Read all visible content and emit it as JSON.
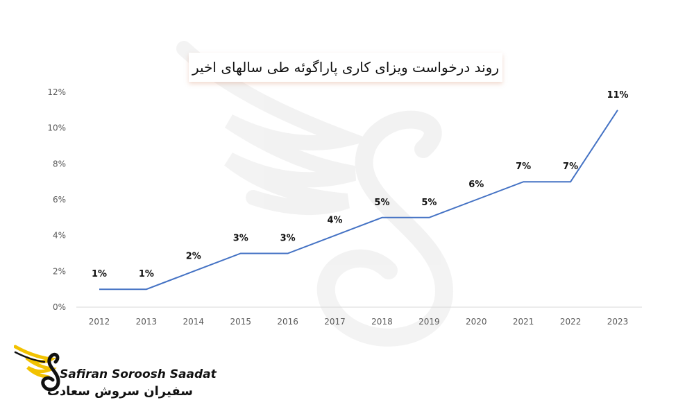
{
  "chart_data": {
    "type": "line",
    "title": "روند درخواست ویزای کاری پاراگوئه طی سالهای اخیر",
    "xlabel": "",
    "ylabel": "",
    "categories": [
      "2012",
      "2013",
      "2014",
      "2015",
      "2016",
      "2017",
      "2018",
      "2019",
      "2020",
      "2021",
      "2022",
      "2023"
    ],
    "values": [
      1,
      1,
      2,
      3,
      3,
      4,
      5,
      5,
      6,
      7,
      7,
      11
    ],
    "data_labels": [
      "1%",
      "1%",
      "2%",
      "3%",
      "3%",
      "4%",
      "5%",
      "5%",
      "6%",
      "7%",
      "7%",
      "11%"
    ],
    "yticks": [
      "0%",
      "2%",
      "4%",
      "6%",
      "8%",
      "10%",
      "12%"
    ],
    "ylim": [
      0,
      12
    ],
    "grid": false,
    "line_color": "#4472c4",
    "axis_color": "#d9d9d9"
  },
  "logo": {
    "brand_en": "Safiran Soroosh Saadat",
    "brand_fa": "سفیران سروش سعادت",
    "wing_color": "#f2c200",
    "icon": "wing-swan-logo-icon"
  }
}
